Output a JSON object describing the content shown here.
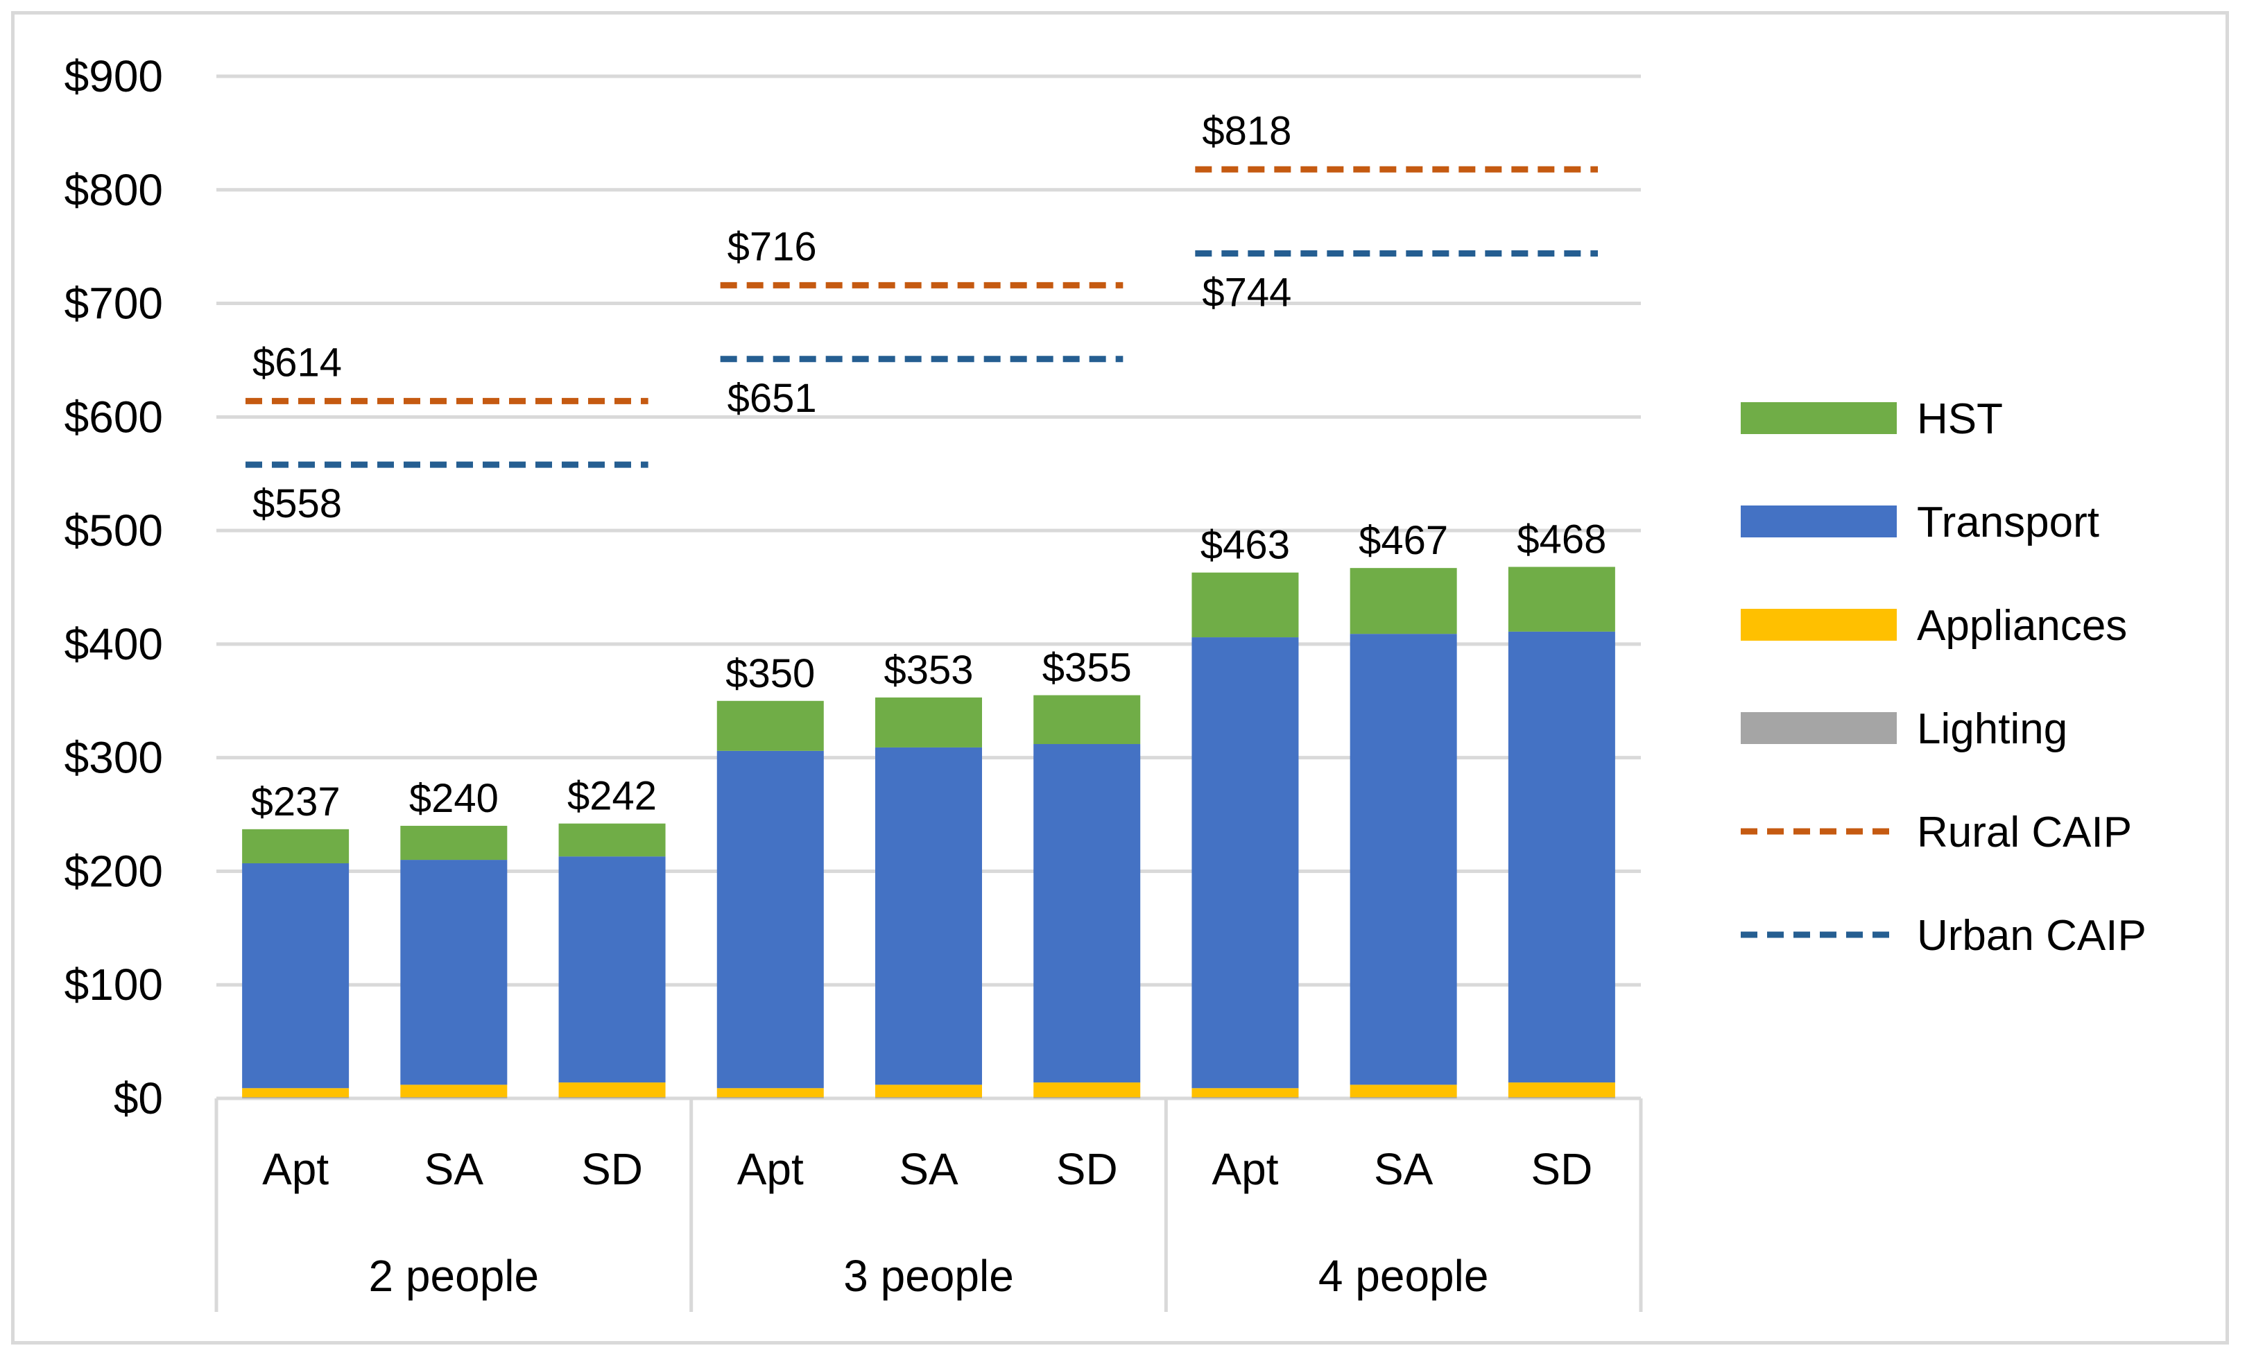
{
  "chart_data": {
    "type": "bar",
    "stacked": true,
    "title": "",
    "xlabel": "",
    "ylabel": "",
    "ylim": [
      0,
      900
    ],
    "ytick_values": [
      0,
      100,
      200,
      300,
      400,
      500,
      600,
      700,
      800,
      900
    ],
    "ytick_labels": [
      "$0",
      "$100",
      "$200",
      "$300",
      "$400",
      "$500",
      "$600",
      "$700",
      "$800",
      "$900"
    ],
    "gridlines": true,
    "legend_position": "right",
    "groups": [
      {
        "label": "2 people",
        "categories": [
          "Apt",
          "SA",
          "SD"
        ]
      },
      {
        "label": "3 people",
        "categories": [
          "Apt",
          "SA",
          "SD"
        ]
      },
      {
        "label": "4 people",
        "categories": [
          "Apt",
          "SA",
          "SD"
        ]
      }
    ],
    "series": [
      {
        "name": "Lighting",
        "color": "#a5a5a5",
        "values": [
          1,
          1,
          1,
          1,
          1,
          1,
          1,
          1,
          1
        ]
      },
      {
        "name": "Appliances",
        "color": "#ffc000",
        "values": [
          8,
          11,
          13,
          8,
          11,
          13,
          8,
          11,
          13
        ]
      },
      {
        "name": "Transport",
        "color": "#4472c4",
        "values": [
          198,
          198,
          199,
          297,
          297,
          298,
          397,
          397,
          397
        ]
      },
      {
        "name": "HST",
        "color": "#70ad47",
        "values": [
          30,
          30,
          29,
          44,
          44,
          43,
          57,
          58,
          57
        ]
      }
    ],
    "totals": [
      237,
      240,
      242,
      350,
      353,
      355,
      463,
      467,
      468
    ],
    "total_labels": [
      "$237",
      "$240",
      "$242",
      "$350",
      "$353",
      "$355",
      "$463",
      "$467",
      "$468"
    ],
    "reference_lines": [
      {
        "name": "Rural CAIP",
        "color": "#c55a11",
        "values": [
          614,
          716,
          818
        ],
        "labels": [
          "$614",
          "$716",
          "$818"
        ],
        "label_position": "above"
      },
      {
        "name": "Urban CAIP",
        "color": "#255e91",
        "values": [
          558,
          651,
          744
        ],
        "labels": [
          "$558",
          "$651",
          "$744"
        ],
        "label_position": "below"
      }
    ],
    "legend": [
      {
        "name": "HST",
        "kind": "bar",
        "color": "#70ad47"
      },
      {
        "name": "Transport",
        "kind": "bar",
        "color": "#4472c4"
      },
      {
        "name": "Appliances",
        "kind": "bar",
        "color": "#ffc000"
      },
      {
        "name": "Lighting",
        "kind": "bar",
        "color": "#a5a5a5"
      },
      {
        "name": "Rural CAIP",
        "kind": "dashed-line",
        "color": "#c55a11"
      },
      {
        "name": "Urban CAIP",
        "kind": "dashed-line",
        "color": "#255e91"
      }
    ]
  }
}
